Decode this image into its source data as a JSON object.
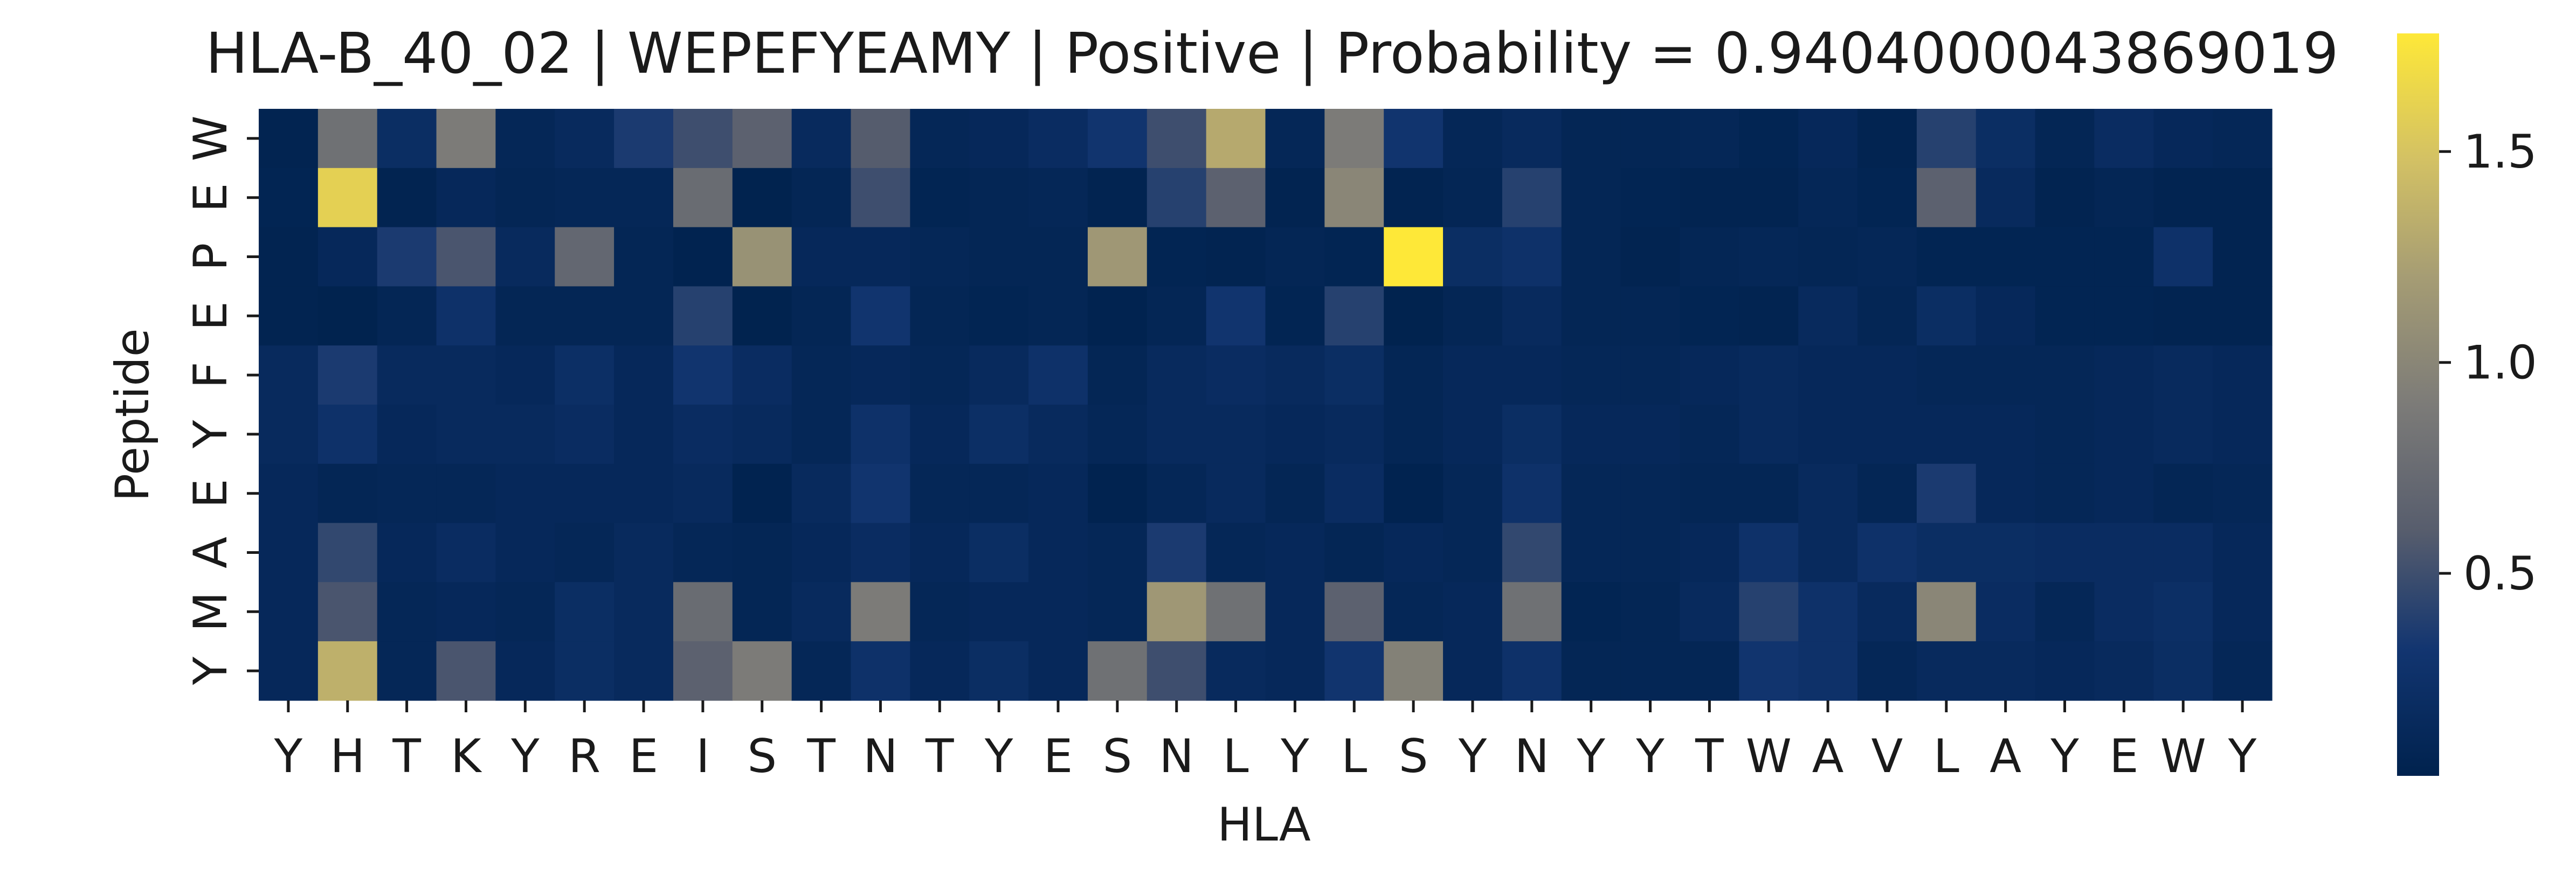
{
  "chart_data": {
    "type": "heatmap",
    "title": "HLA-B_40_02 | WEPEFYEAMY | Positive | Probability = 0.9404000043869019",
    "xlabel": "HLA",
    "ylabel": "Peptide",
    "x_categories": [
      "Y",
      "H",
      "T",
      "K",
      "Y",
      "R",
      "E",
      "I",
      "S",
      "T",
      "N",
      "T",
      "Y",
      "E",
      "S",
      "N",
      "L",
      "Y",
      "L",
      "S",
      "Y",
      "N",
      "Y",
      "Y",
      "T",
      "W",
      "A",
      "V",
      "L",
      "A",
      "Y",
      "E",
      "W",
      "Y"
    ],
    "y_categories": [
      "W",
      "E",
      "P",
      "E",
      "F",
      "Y",
      "E",
      "A",
      "M",
      "Y"
    ],
    "colorbar": {
      "ticks": [
        0.5,
        1.0,
        1.5
      ],
      "tick_labels": [
        "0.5",
        "1.0",
        "1.5"
      ],
      "range": [
        0.02,
        1.78
      ]
    },
    "colorscale": [
      "#00224e",
      "#123570",
      "#575d6d",
      "#7c7b78",
      "#a59c74",
      "#d3c164",
      "#fee838"
    ],
    "values": [
      [
        0.05,
        0.8,
        0.2,
        0.9,
        0.1,
        0.15,
        0.35,
        0.5,
        0.65,
        0.15,
        0.6,
        0.1,
        0.12,
        0.18,
        0.3,
        0.5,
        1.3,
        0.1,
        0.9,
        0.3,
        0.1,
        0.15,
        0.08,
        0.08,
        0.1,
        0.06,
        0.12,
        0.05,
        0.4,
        0.2,
        0.08,
        0.18,
        0.12,
        0.1
      ],
      [
        0.06,
        1.6,
        0.05,
        0.12,
        0.08,
        0.1,
        0.1,
        0.75,
        0.03,
        0.08,
        0.5,
        0.06,
        0.08,
        0.1,
        0.05,
        0.4,
        0.65,
        0.05,
        1.0,
        0.05,
        0.08,
        0.4,
        0.08,
        0.06,
        0.05,
        0.05,
        0.1,
        0.06,
        0.65,
        0.15,
        0.05,
        0.08,
        0.05,
        0.05
      ],
      [
        0.05,
        0.12,
        0.35,
        0.55,
        0.15,
        0.7,
        0.08,
        0.04,
        1.1,
        0.12,
        0.12,
        0.1,
        0.08,
        0.08,
        1.15,
        0.06,
        0.05,
        0.08,
        0.06,
        1.78,
        0.2,
        0.25,
        0.08,
        0.05,
        0.08,
        0.1,
        0.08,
        0.1,
        0.06,
        0.06,
        0.06,
        0.06,
        0.25,
        0.05
      ],
      [
        0.05,
        0.03,
        0.08,
        0.25,
        0.08,
        0.08,
        0.08,
        0.4,
        0.03,
        0.08,
        0.3,
        0.08,
        0.06,
        0.08,
        0.04,
        0.08,
        0.3,
        0.06,
        0.4,
        0.03,
        0.08,
        0.15,
        0.08,
        0.08,
        0.06,
        0.05,
        0.15,
        0.08,
        0.2,
        0.12,
        0.06,
        0.06,
        0.05,
        0.05
      ],
      [
        0.15,
        0.35,
        0.15,
        0.15,
        0.12,
        0.22,
        0.12,
        0.3,
        0.18,
        0.1,
        0.12,
        0.1,
        0.15,
        0.25,
        0.08,
        0.15,
        0.18,
        0.15,
        0.2,
        0.08,
        0.12,
        0.12,
        0.1,
        0.1,
        0.12,
        0.15,
        0.12,
        0.12,
        0.1,
        0.1,
        0.1,
        0.12,
        0.15,
        0.12
      ],
      [
        0.15,
        0.25,
        0.12,
        0.15,
        0.15,
        0.18,
        0.12,
        0.18,
        0.15,
        0.1,
        0.25,
        0.12,
        0.22,
        0.15,
        0.1,
        0.15,
        0.15,
        0.12,
        0.15,
        0.08,
        0.12,
        0.2,
        0.12,
        0.12,
        0.1,
        0.15,
        0.12,
        0.12,
        0.12,
        0.12,
        0.1,
        0.12,
        0.15,
        0.12
      ],
      [
        0.12,
        0.08,
        0.1,
        0.1,
        0.12,
        0.12,
        0.12,
        0.15,
        0.04,
        0.15,
        0.3,
        0.1,
        0.1,
        0.12,
        0.04,
        0.1,
        0.15,
        0.08,
        0.18,
        0.04,
        0.1,
        0.25,
        0.1,
        0.1,
        0.08,
        0.08,
        0.15,
        0.08,
        0.35,
        0.12,
        0.1,
        0.12,
        0.08,
        0.1
      ],
      [
        0.12,
        0.45,
        0.12,
        0.18,
        0.12,
        0.1,
        0.15,
        0.1,
        0.08,
        0.12,
        0.18,
        0.12,
        0.2,
        0.12,
        0.1,
        0.35,
        0.1,
        0.12,
        0.08,
        0.12,
        0.1,
        0.45,
        0.1,
        0.1,
        0.12,
        0.25,
        0.15,
        0.25,
        0.2,
        0.2,
        0.18,
        0.18,
        0.18,
        0.12
      ],
      [
        0.12,
        0.55,
        0.1,
        0.12,
        0.1,
        0.2,
        0.15,
        0.75,
        0.08,
        0.15,
        0.9,
        0.1,
        0.12,
        0.12,
        0.1,
        1.15,
        0.8,
        0.12,
        0.65,
        0.1,
        0.12,
        0.8,
        0.06,
        0.08,
        0.15,
        0.4,
        0.25,
        0.15,
        1.0,
        0.18,
        0.1,
        0.18,
        0.22,
        0.12
      ],
      [
        0.12,
        1.35,
        0.1,
        0.55,
        0.12,
        0.2,
        0.15,
        0.65,
        0.9,
        0.1,
        0.25,
        0.12,
        0.2,
        0.12,
        0.8,
        0.5,
        0.15,
        0.12,
        0.3,
        0.95,
        0.12,
        0.25,
        0.08,
        0.08,
        0.08,
        0.3,
        0.25,
        0.1,
        0.15,
        0.15,
        0.12,
        0.15,
        0.2,
        0.1
      ]
    ]
  }
}
